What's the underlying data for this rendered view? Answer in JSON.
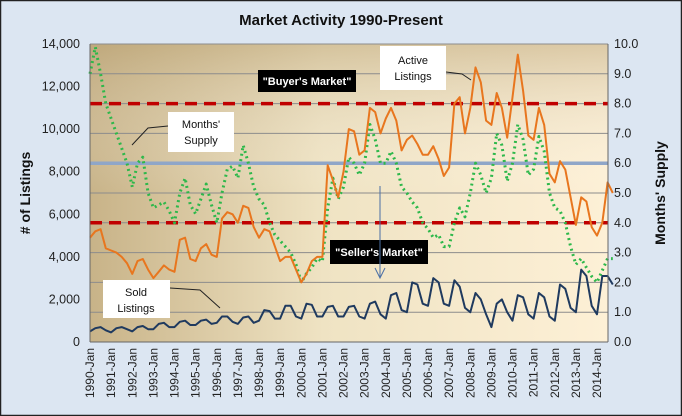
{
  "chart_data": {
    "type": "line",
    "title": "Market Activity  1990-Present",
    "ylabel": "# of Listings",
    "ylabel_right": "Months' Supply",
    "ylim": [
      0,
      14000
    ],
    "ylim_right": [
      0,
      10
    ],
    "yticks": [
      "0",
      "2,000",
      "4,000",
      "6,000",
      "8,000",
      "10,000",
      "12,000",
      "14,000"
    ],
    "yticks_right": [
      "0.0",
      "1.0",
      "2.0",
      "3.0",
      "4.0",
      "5.0",
      "6.0",
      "7.0",
      "8.0",
      "9.0",
      "10.0"
    ],
    "xticks": [
      "1990-Jan",
      "1991-Jan",
      "1992-Jan",
      "1993-Jan",
      "1994-Jan",
      "1995-Jan",
      "1996-Jan",
      "1997-Jan",
      "1998-Jan",
      "1999-Jan",
      "2000-Jan",
      "2001-Jan",
      "2002-Jan",
      "2003-Jan",
      "2004-Jan",
      "2005-Jan",
      "2006-Jan",
      "2007-Jan",
      "2008-Jan",
      "2009-Jan",
      "2010-Jan",
      "2011-Jan",
      "2012-Jan",
      "2013-Jan",
      "2014-Jan"
    ],
    "grid": true,
    "x": [
      "1990-Jan",
      "1990-Apr",
      "1990-Jul",
      "1990-Oct",
      "1991-Jan",
      "1991-Apr",
      "1991-Jul",
      "1991-Oct",
      "1992-Jan",
      "1992-Apr",
      "1992-Jul",
      "1992-Oct",
      "1993-Jan",
      "1993-Apr",
      "1993-Jul",
      "1993-Oct",
      "1994-Jan",
      "1994-Apr",
      "1994-Jul",
      "1994-Oct",
      "1995-Jan",
      "1995-Apr",
      "1995-Jul",
      "1995-Oct",
      "1996-Jan",
      "1996-Apr",
      "1996-Jul",
      "1996-Oct",
      "1997-Jan",
      "1997-Apr",
      "1997-Jul",
      "1997-Oct",
      "1998-Jan",
      "1998-Apr",
      "1998-Jul",
      "1998-Oct",
      "1999-Jan",
      "1999-Apr",
      "1999-Jul",
      "1999-Oct",
      "2000-Jan",
      "2000-Apr",
      "2000-Jul",
      "2000-Oct",
      "2001-Jan",
      "2001-Apr",
      "2001-Jul",
      "2001-Oct",
      "2002-Jan",
      "2002-Apr",
      "2002-Jul",
      "2002-Oct",
      "2003-Jan",
      "2003-Apr",
      "2003-Jul",
      "2003-Oct",
      "2004-Jan",
      "2004-Apr",
      "2004-Jul",
      "2004-Oct",
      "2005-Jan",
      "2005-Apr",
      "2005-Jul",
      "2005-Oct",
      "2006-Jan",
      "2006-Apr",
      "2006-Jul",
      "2006-Oct",
      "2007-Jan",
      "2007-Apr",
      "2007-Jul",
      "2007-Oct",
      "2008-Jan",
      "2008-Apr",
      "2008-Jul",
      "2008-Oct",
      "2009-Jan",
      "2009-Apr",
      "2009-Jul",
      "2009-Oct",
      "2010-Jan",
      "2010-Apr",
      "2010-Jul",
      "2010-Oct",
      "2011-Jan",
      "2011-Apr",
      "2011-Jul",
      "2011-Oct",
      "2012-Jan",
      "2012-Apr",
      "2012-Jul",
      "2012-Oct",
      "2013-Jan",
      "2013-Apr",
      "2013-Jul",
      "2013-Oct",
      "2014-Jan",
      "2014-Apr",
      "2014-Jul",
      "2014-Oct"
    ],
    "series": [
      {
        "name": "Active Listings",
        "axis": "left",
        "color": "#e8761e",
        "style": "solid",
        "values": [
          4900,
          5200,
          5300,
          4400,
          4300,
          4200,
          4000,
          3700,
          3200,
          3800,
          3900,
          3400,
          3000,
          3300,
          3600,
          3400,
          3300,
          4800,
          4900,
          3900,
          3800,
          4400,
          4600,
          4100,
          4000,
          5800,
          6100,
          6000,
          5600,
          6400,
          6300,
          5400,
          4900,
          5300,
          5200,
          4500,
          3800,
          4000,
          4000,
          3400,
          2800,
          3200,
          3800,
          4000,
          4000,
          8300,
          7600,
          6800,
          8000,
          10000,
          9900,
          8800,
          9000,
          11000,
          10800,
          9800,
          10500,
          11000,
          10400,
          9000,
          9500,
          9700,
          9300,
          8800,
          8800,
          9200,
          8600,
          7800,
          8200,
          11200,
          11500,
          9800,
          11000,
          12900,
          12200,
          10400,
          10200,
          11700,
          11000,
          9600,
          11500,
          13500,
          11800,
          9700,
          9500,
          11000,
          10200,
          7900,
          7500,
          8500,
          8100,
          6800,
          5500,
          6800,
          6600,
          5400,
          5000,
          5600,
          7500,
          7000
        ]
      },
      {
        "name": "Months' Supply",
        "axis": "right",
        "color": "#2db84a",
        "style": "dotted",
        "values": [
          9.0,
          9.9,
          9.0,
          8.0,
          7.5,
          7.0,
          6.5,
          6.0,
          5.2,
          6.0,
          6.2,
          5.0,
          4.5,
          4.6,
          4.7,
          4.4,
          4.0,
          5.0,
          5.5,
          4.6,
          4.3,
          4.8,
          5.3,
          4.6,
          4.0,
          5.0,
          5.8,
          5.9,
          5.5,
          6.6,
          6.0,
          5.2,
          4.8,
          4.6,
          4.0,
          3.6,
          3.4,
          3.2,
          3.0,
          2.6,
          2.0,
          2.3,
          2.5,
          2.8,
          2.7,
          4.5,
          5.5,
          4.8,
          5.2,
          6.2,
          6.0,
          5.6,
          6.0,
          7.3,
          6.8,
          6.0,
          6.0,
          6.4,
          6.0,
          5.2,
          5.0,
          4.7,
          4.5,
          4.0,
          3.8,
          3.5,
          3.6,
          3.2,
          3.2,
          4.0,
          4.5,
          4.2,
          5.0,
          6.0,
          5.6,
          5.0,
          5.5,
          7.0,
          6.6,
          5.4,
          6.0,
          7.3,
          6.8,
          5.6,
          5.8,
          6.9,
          6.4,
          5.0,
          4.5,
          4.4,
          4.0,
          3.2,
          2.6,
          2.8,
          2.5,
          2.2,
          2.0,
          2.4,
          2.8,
          2.8
        ]
      },
      {
        "name": "Sold Listings",
        "axis": "left",
        "color": "#1f3a5f",
        "style": "solid",
        "values": [
          500,
          650,
          700,
          550,
          450,
          650,
          700,
          600,
          500,
          700,
          750,
          600,
          600,
          850,
          900,
          700,
          700,
          950,
          1000,
          800,
          800,
          1000,
          1050,
          850,
          900,
          1200,
          1200,
          950,
          850,
          1150,
          1200,
          900,
          1000,
          1500,
          1450,
          1100,
          1100,
          1700,
          1700,
          1200,
          1100,
          1800,
          1750,
          1200,
          1200,
          1650,
          1700,
          1200,
          1200,
          1650,
          1700,
          1200,
          1100,
          1800,
          1900,
          1300,
          1100,
          2200,
          2300,
          1500,
          1400,
          2800,
          2700,
          1800,
          1700,
          3000,
          2800,
          1800,
          1700,
          2900,
          2600,
          1600,
          1400,
          2300,
          2000,
          1300,
          700,
          1800,
          2000,
          1400,
          1000,
          2200,
          2100,
          1300,
          1100,
          2300,
          2100,
          1200,
          1000,
          2700,
          2500,
          1600,
          1400,
          3400,
          3100,
          1700,
          1300,
          3100,
          3100,
          2700
        ]
      }
    ],
    "reference_lines": [
      {
        "axis": "right",
        "value": 8.0,
        "color": "#c00000",
        "style": "dashed"
      },
      {
        "axis": "right",
        "value": 6.0,
        "color": "#8fa6c8",
        "style": "solid"
      },
      {
        "axis": "right",
        "value": 4.0,
        "color": "#c00000",
        "style": "dashed"
      }
    ],
    "annotations": {
      "buyers_market": "\"Buyer's Market\"",
      "sellers_market": "\"Seller's Market\"",
      "active_listings": [
        "Active",
        "Listings"
      ],
      "months_supply": [
        "Months'",
        "Supply"
      ],
      "sold_listings": [
        "Sold",
        "Listings"
      ]
    }
  }
}
